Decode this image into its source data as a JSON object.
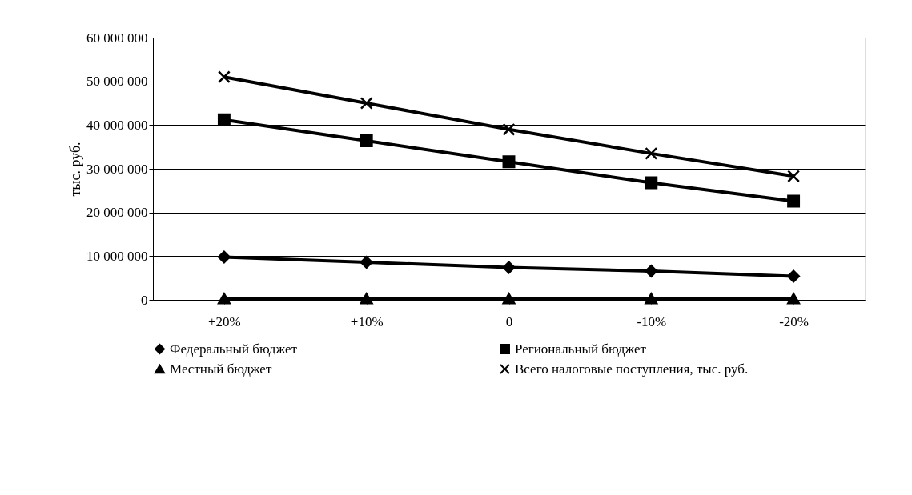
{
  "chart_data": {
    "type": "line",
    "ylabel": "тыс. руб.",
    "categories": [
      "+20%",
      "+10%",
      "0",
      "-10%",
      "-20%"
    ],
    "ylim": [
      0,
      60000000
    ],
    "yticks": [
      {
        "value": 0,
        "label": "0"
      },
      {
        "value": 10000000,
        "label": "10 000 000"
      },
      {
        "value": 20000000,
        "label": "20 000 000"
      },
      {
        "value": 30000000,
        "label": "30 000 000"
      },
      {
        "value": 40000000,
        "label": "40 000 000"
      },
      {
        "value": 50000000,
        "label": "50 000 000"
      },
      {
        "value": 60000000,
        "label": "60 000 000"
      }
    ],
    "grid": "y",
    "legend": "bottom",
    "line_style": "solid",
    "series": [
      {
        "name": "Федеральный бюджет",
        "color": "#000000",
        "marker": "diamond",
        "values": [
          9800000,
          8600000,
          7400000,
          6600000,
          5400000
        ]
      },
      {
        "name": "Региональный бюджет",
        "color": "#000000",
        "marker": "square",
        "values": [
          41200000,
          36400000,
          31600000,
          26800000,
          22600000
        ]
      },
      {
        "name": "Местный бюджет",
        "color": "#000000",
        "marker": "triangle",
        "values": [
          300000,
          300000,
          300000,
          300000,
          300000
        ]
      },
      {
        "name": "Всего налоговые поступления, тыс. руб.",
        "color": "#000000",
        "marker": "cross",
        "values": [
          51000000,
          45000000,
          39000000,
          33500000,
          28300000
        ]
      }
    ]
  }
}
